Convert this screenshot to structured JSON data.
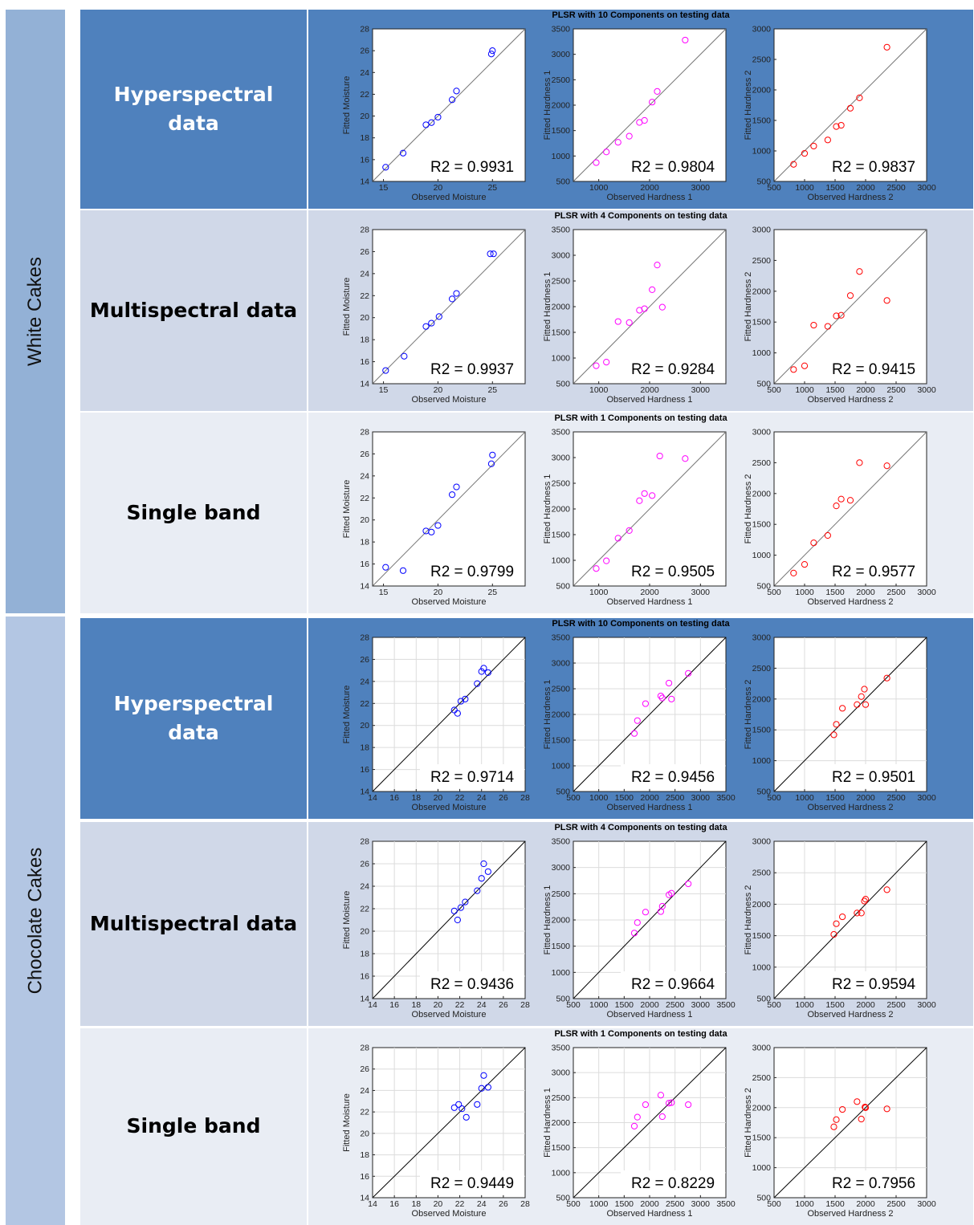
{
  "groups": [
    {
      "label": "White Cakes",
      "top": 12,
      "height": 752,
      "color": "#93b1d6"
    },
    {
      "label": "Chocolate Cakes",
      "top": 768,
      "height": 758,
      "color": "#b3c6e3"
    }
  ],
  "chart_data": [
    {
      "row_label": "Hyperspectral\ndata",
      "title": "PLSR with 10 Components on testing data",
      "background": "#4f81bd",
      "label_color": "#ffffff",
      "top": 12,
      "height": 248,
      "line_color": "#777777",
      "charts": [
        {
          "type": "scatter",
          "xlabel": "Observed Moisture",
          "ylabel": "Fitted Moisture",
          "xlim": [
            14,
            28
          ],
          "ylim": [
            14,
            28
          ],
          "xticks": [
            15,
            20,
            25
          ],
          "yticks": [
            14,
            16,
            18,
            20,
            22,
            24,
            26,
            28
          ],
          "grid": false,
          "marker_color": "#0000ff",
          "r2": "R2 = 0.9931",
          "x": [
            15.2,
            16.8,
            18.9,
            19.4,
            20.0,
            21.3,
            21.7,
            24.9,
            25.0
          ],
          "y": [
            15.3,
            16.6,
            19.2,
            19.4,
            19.9,
            21.5,
            22.3,
            25.7,
            26.0
          ]
        },
        {
          "type": "scatter",
          "xlabel": "Observed Hardness 1",
          "ylabel": "Fitted Hardness 1",
          "xlim": [
            500,
            3500
          ],
          "ylim": [
            500,
            3500
          ],
          "xticks": [
            1000,
            2000,
            3000
          ],
          "yticks": [
            500,
            1000,
            1500,
            2000,
            2500,
            3000,
            3500
          ],
          "grid": false,
          "marker_color": "#ff00ff",
          "r2": "R2 = 0.9804",
          "x": [
            950,
            1150,
            1380,
            1600,
            1800,
            1900,
            2050,
            2150,
            2700
          ],
          "y": [
            870,
            1080,
            1270,
            1390,
            1660,
            1700,
            2060,
            2270,
            3280
          ]
        },
        {
          "type": "scatter",
          "xlabel": "Observed Hardness 2",
          "ylabel": "Fitted Hardness 2",
          "xlim": [
            500,
            3000
          ],
          "ylim": [
            500,
            3000
          ],
          "xticks": [
            500,
            1000,
            1500,
            2000,
            2500,
            3000
          ],
          "yticks": [
            500,
            1000,
            1500,
            2000,
            2500,
            3000
          ],
          "grid": false,
          "marker_color": "#ff0000",
          "r2": "R2 = 0.9837",
          "x": [
            820,
            1000,
            1150,
            1380,
            1520,
            1600,
            1750,
            1900,
            2350
          ],
          "y": [
            780,
            960,
            1080,
            1180,
            1400,
            1420,
            1700,
            1870,
            2700
          ]
        }
      ]
    },
    {
      "row_label": "Multispectral data",
      "title": "PLSR with 4 Components on testing data",
      "background": "#d0d8e8",
      "label_color": "#000000",
      "top": 262,
      "height": 250,
      "line_color": "#777777",
      "charts": [
        {
          "type": "scatter",
          "xlabel": "Observed Moisture",
          "ylabel": "Fitted Moisture",
          "xlim": [
            14,
            28
          ],
          "ylim": [
            14,
            28
          ],
          "xticks": [
            15,
            20,
            25
          ],
          "yticks": [
            14,
            16,
            18,
            20,
            22,
            24,
            26,
            28
          ],
          "grid": false,
          "marker_color": "#0000ff",
          "r2": "R2 = 0.9937",
          "x": [
            15.2,
            16.9,
            18.9,
            19.4,
            20.1,
            21.3,
            21.7,
            24.8,
            25.1
          ],
          "y": [
            15.2,
            16.5,
            19.2,
            19.5,
            20.1,
            21.7,
            22.2,
            25.8,
            25.8
          ]
        },
        {
          "type": "scatter",
          "xlabel": "Observed Hardness 1",
          "ylabel": "Fitted Hardness 1",
          "xlim": [
            500,
            3500
          ],
          "ylim": [
            500,
            3500
          ],
          "xticks": [
            1000,
            2000,
            3000
          ],
          "yticks": [
            500,
            1000,
            1500,
            2000,
            2500,
            3000,
            3500
          ],
          "grid": false,
          "marker_color": "#ff00ff",
          "r2": "R2 = 0.9284",
          "x": [
            950,
            1150,
            1380,
            1600,
            1800,
            1900,
            2050,
            2150,
            2250
          ],
          "y": [
            850,
            920,
            1710,
            1690,
            1930,
            1960,
            2330,
            2810,
            1990
          ]
        },
        {
          "type": "scatter",
          "xlabel": "Observed Hardness 2",
          "ylabel": "Fitted Hardness 2",
          "xlim": [
            500,
            3000
          ],
          "ylim": [
            500,
            3000
          ],
          "xticks": [
            500,
            1000,
            1500,
            2000,
            2500,
            3000
          ],
          "yticks": [
            500,
            1000,
            1500,
            2000,
            2500,
            3000
          ],
          "grid": false,
          "marker_color": "#ff0000",
          "r2": "R2 = 0.9415",
          "x": [
            820,
            1000,
            1150,
            1380,
            1520,
            1600,
            1750,
            1900,
            2350
          ],
          "y": [
            730,
            790,
            1450,
            1430,
            1600,
            1610,
            1930,
            2320,
            1850
          ]
        }
      ]
    },
    {
      "row_label": "Single band",
      "title": "PLSR with 1 Components on testing data",
      "background": "#e9edf4",
      "label_color": "#000000",
      "top": 514,
      "height": 250,
      "line_color": "#777777",
      "charts": [
        {
          "type": "scatter",
          "xlabel": "Observed Moisture",
          "ylabel": "Fitted Moisture",
          "xlim": [
            14,
            28
          ],
          "ylim": [
            14,
            28
          ],
          "xticks": [
            15,
            20,
            25
          ],
          "yticks": [
            14,
            16,
            18,
            20,
            22,
            24,
            26,
            28
          ],
          "grid": false,
          "marker_color": "#0000ff",
          "r2": "R2 = 0.9799",
          "x": [
            15.2,
            16.8,
            18.9,
            19.4,
            20.0,
            21.3,
            21.7,
            24.9,
            25.0
          ],
          "y": [
            15.7,
            15.4,
            19.0,
            18.9,
            19.5,
            22.3,
            23.0,
            25.1,
            25.9
          ]
        },
        {
          "type": "scatter",
          "xlabel": "Observed Hardness 1",
          "ylabel": "Fitted Hardness 1",
          "xlim": [
            500,
            3500
          ],
          "ylim": [
            500,
            3500
          ],
          "xticks": [
            1000,
            2000,
            3000
          ],
          "yticks": [
            500,
            1000,
            1500,
            2000,
            2500,
            3000,
            3500
          ],
          "grid": false,
          "marker_color": "#ff00ff",
          "r2": "R2 = 0.9505",
          "x": [
            950,
            1150,
            1380,
            1600,
            1800,
            1900,
            2050,
            2200,
            2700
          ],
          "y": [
            840,
            990,
            1430,
            1580,
            2160,
            2300,
            2260,
            3030,
            2980
          ]
        },
        {
          "type": "scatter",
          "xlabel": "Observed Hardness 2",
          "ylabel": "Fitted Hardness 2",
          "xlim": [
            500,
            3000
          ],
          "ylim": [
            500,
            3000
          ],
          "xticks": [
            500,
            1000,
            1500,
            2000,
            2500,
            3000
          ],
          "yticks": [
            500,
            1000,
            1500,
            2000,
            2500,
            3000
          ],
          "grid": false,
          "marker_color": "#ff0000",
          "r2": "R2 = 0.9577",
          "x": [
            820,
            1000,
            1150,
            1380,
            1520,
            1600,
            1750,
            1900,
            2350
          ],
          "y": [
            710,
            850,
            1200,
            1320,
            1800,
            1910,
            1890,
            2500,
            2450
          ]
        }
      ]
    },
    {
      "row_label": "Hyperspectral\ndata",
      "title": "PLSR with 10 Components on testing data",
      "background": "#4f81bd",
      "label_color": "#ffffff",
      "top": 770,
      "height": 250,
      "line_color": "#000000",
      "charts": [
        {
          "type": "scatter",
          "xlabel": "Observed Moisture",
          "ylabel": "Fitted Moisture",
          "xlim": [
            14,
            28
          ],
          "ylim": [
            14,
            28
          ],
          "xticks": [
            14,
            16,
            18,
            20,
            22,
            24,
            26,
            28
          ],
          "yticks": [
            14,
            16,
            18,
            20,
            22,
            24,
            26,
            28
          ],
          "grid": true,
          "marker_color": "#0000ff",
          "r2": "R2 = 0.9714",
          "x": [
            21.5,
            21.8,
            22.1,
            22.5,
            23.6,
            24.0,
            24.2,
            24.6
          ],
          "y": [
            21.4,
            21.1,
            22.2,
            22.4,
            23.8,
            24.9,
            25.2,
            24.8
          ]
        },
        {
          "type": "scatter",
          "xlabel": "Observed Hardness 1",
          "ylabel": "Fitted Hardness 1",
          "xlim": [
            500,
            3500
          ],
          "ylim": [
            500,
            3500
          ],
          "xticks": [
            500,
            1000,
            1500,
            2000,
            2500,
            3000,
            3500
          ],
          "yticks": [
            500,
            1000,
            1500,
            2000,
            2500,
            3000,
            3500
          ],
          "grid": true,
          "marker_color": "#ff00ff",
          "r2": "R2 = 0.9456",
          "x": [
            1700,
            1760,
            1920,
            2220,
            2250,
            2380,
            2430,
            2760
          ],
          "y": [
            1630,
            1880,
            2210,
            2360,
            2320,
            2610,
            2300,
            2800
          ]
        },
        {
          "type": "scatter",
          "xlabel": "Observed Hardness 2",
          "ylabel": "Fitted Hardness 2",
          "xlim": [
            500,
            3000
          ],
          "ylim": [
            500,
            3000
          ],
          "xticks": [
            500,
            1000,
            1500,
            2000,
            2500,
            3000
          ],
          "yticks": [
            500,
            1000,
            1500,
            2000,
            2500,
            3000
          ],
          "grid": true,
          "marker_color": "#ff0000",
          "r2": "R2 = 0.9501",
          "x": [
            1480,
            1520,
            1620,
            1860,
            1930,
            1980,
            2000,
            2350
          ],
          "y": [
            1420,
            1590,
            1850,
            1910,
            2040,
            2160,
            1910,
            2340
          ]
        }
      ]
    },
    {
      "row_label": "Multispectral data",
      "title": "PLSR with 4 Components on testing data",
      "background": "#d0d8e8",
      "label_color": "#000000",
      "top": 1024,
      "height": 254,
      "line_color": "#000000",
      "charts": [
        {
          "type": "scatter",
          "xlabel": "Observed Moisture",
          "ylabel": "Fitted Moisture",
          "xlim": [
            14,
            28
          ],
          "ylim": [
            14,
            28
          ],
          "xticks": [
            14,
            16,
            18,
            20,
            22,
            24,
            26,
            28
          ],
          "yticks": [
            14,
            16,
            18,
            20,
            22,
            24,
            26,
            28
          ],
          "grid": true,
          "marker_color": "#0000ff",
          "r2": "R2 = 0.9436",
          "x": [
            21.5,
            21.8,
            22.1,
            22.5,
            23.6,
            24.0,
            24.2,
            24.6
          ],
          "y": [
            21.8,
            21.0,
            22.1,
            22.6,
            23.6,
            24.7,
            26.0,
            25.3
          ]
        },
        {
          "type": "scatter",
          "xlabel": "Observed Hardness 1",
          "ylabel": "Fitted Hardness 1",
          "xlim": [
            500,
            3500
          ],
          "ylim": [
            500,
            3500
          ],
          "xticks": [
            500,
            1000,
            1500,
            2000,
            2500,
            3000,
            3500
          ],
          "yticks": [
            500,
            1000,
            1500,
            2000,
            2500,
            3000,
            3500
          ],
          "grid": true,
          "marker_color": "#ff00ff",
          "r2": "R2 = 0.9664",
          "x": [
            1700,
            1760,
            1920,
            2220,
            2250,
            2380,
            2430,
            2760
          ],
          "y": [
            1750,
            1950,
            2150,
            2160,
            2260,
            2480,
            2510,
            2690
          ]
        },
        {
          "type": "scatter",
          "xlabel": "Observed Hardness 2",
          "ylabel": "Fitted Hardness 2",
          "xlim": [
            500,
            3000
          ],
          "ylim": [
            500,
            3000
          ],
          "xticks": [
            500,
            1000,
            1500,
            2000,
            2500,
            3000
          ],
          "yticks": [
            500,
            1000,
            1500,
            2000,
            2500,
            3000
          ],
          "grid": true,
          "marker_color": "#ff0000",
          "r2": "R2 = 0.9594",
          "x": [
            1480,
            1520,
            1620,
            1860,
            1930,
            1980,
            2000,
            2350
          ],
          "y": [
            1520,
            1690,
            1800,
            1860,
            1860,
            2050,
            2080,
            2230
          ]
        }
      ]
    },
    {
      "row_label": "Single band",
      "title": "PLSR with 1 Components on testing data",
      "background": "#e9edf4",
      "label_color": "#000000",
      "top": 1281,
      "height": 245,
      "line_color": "#000000",
      "charts": [
        {
          "type": "scatter",
          "xlabel": "Observed Moisture",
          "ylabel": "Fitted Moisture",
          "xlim": [
            14,
            28
          ],
          "ylim": [
            14,
            28
          ],
          "xticks": [
            14,
            16,
            18,
            20,
            22,
            24,
            26,
            28
          ],
          "yticks": [
            14,
            16,
            18,
            20,
            22,
            24,
            26,
            28
          ],
          "grid": true,
          "marker_color": "#0000ff",
          "r2": "R2 = 0.9449",
          "x": [
            21.5,
            21.9,
            22.2,
            22.6,
            23.6,
            24.0,
            24.2,
            24.6
          ],
          "y": [
            22.4,
            22.7,
            22.3,
            21.5,
            22.7,
            24.2,
            25.4,
            24.3
          ]
        },
        {
          "type": "scatter",
          "xlabel": "Observed Hardness 1",
          "ylabel": "Fitted Hardness 1",
          "xlim": [
            500,
            3500
          ],
          "ylim": [
            500,
            3500
          ],
          "xticks": [
            500,
            1000,
            1500,
            2000,
            2500,
            3000,
            3500
          ],
          "yticks": [
            500,
            1000,
            1500,
            2000,
            2500,
            3000,
            3500
          ],
          "grid": true,
          "marker_color": "#ff00ff",
          "r2": "R2 = 0.8229",
          "x": [
            1700,
            1760,
            1920,
            2220,
            2250,
            2380,
            2430,
            2760
          ],
          "y": [
            1930,
            2110,
            2360,
            2550,
            2120,
            2390,
            2400,
            2360
          ]
        },
        {
          "type": "scatter",
          "xlabel": "Observed Hardness 2",
          "ylabel": "Fitted Hardness 2",
          "xlim": [
            500,
            3000
          ],
          "ylim": [
            500,
            3000
          ],
          "xticks": [
            500,
            1000,
            1500,
            2000,
            2500,
            3000
          ],
          "yticks": [
            500,
            1000,
            1500,
            2000,
            2500,
            3000
          ],
          "grid": true,
          "marker_color": "#ff0000",
          "r2": "R2 = 0.7956",
          "x": [
            1480,
            1520,
            1620,
            1860,
            1930,
            1990,
            2000,
            2350
          ],
          "y": [
            1680,
            1800,
            1970,
            2100,
            1810,
            2010,
            2000,
            1980
          ]
        }
      ]
    }
  ]
}
